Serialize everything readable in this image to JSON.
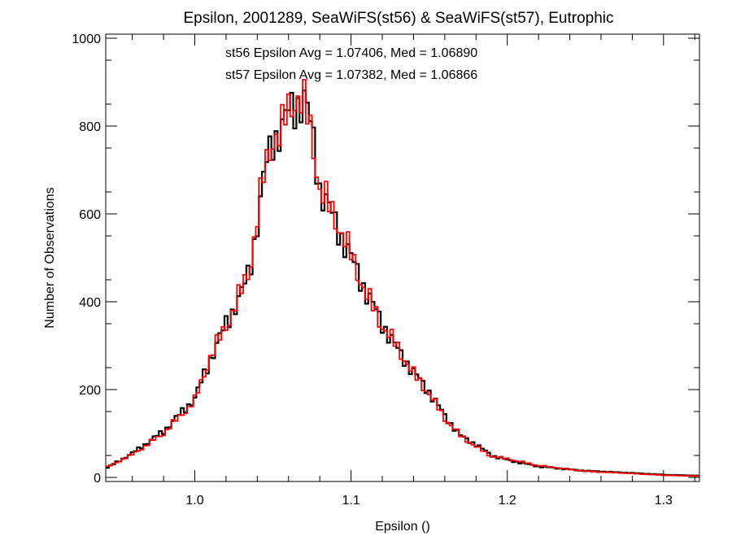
{
  "chart_data": {
    "type": "line",
    "title": "Epsilon, 2001289, SeaWiFS(st56) & SeaWiFS(st57), Eutrophic",
    "xlabel": "Epsilon ()",
    "ylabel": "Number of Observations",
    "xlim": [
      0.943,
      1.323
    ],
    "ylim": [
      0,
      1000
    ],
    "xticks": [
      1.0,
      1.1,
      1.2,
      1.3
    ],
    "xtick_labels": [
      "1.0",
      "1.1",
      "1.2",
      "1.3"
    ],
    "yticks": [
      0,
      200,
      400,
      600,
      800,
      1000
    ],
    "ytick_labels": [
      "0",
      "200",
      "400",
      "600",
      "800",
      "1000"
    ],
    "grid": false,
    "annotations": [
      {
        "text": "st56 Epsilon Avg = 1.07406, Med = 1.06890",
        "color": "#000000"
      },
      {
        "text": "st57 Epsilon Avg = 1.07382, Med = 1.06866",
        "color": "#ff0000"
      }
    ],
    "series": [
      {
        "color": "#000000",
        "x": [
          0.943,
          0.96,
          0.98,
          1.0,
          1.01,
          1.02,
          1.03,
          1.035,
          1.04,
          1.045,
          1.05,
          1.055,
          1.06,
          1.065,
          1.07,
          1.075,
          1.08,
          1.09,
          1.1,
          1.11,
          1.12,
          1.13,
          1.14,
          1.15,
          1.16,
          1.17,
          1.18,
          1.19,
          1.2,
          1.22,
          1.25,
          1.28,
          1.3,
          1.323
        ],
        "y": [
          20,
          55,
          105,
          180,
          270,
          350,
          420,
          470,
          580,
          700,
          770,
          790,
          830,
          850,
          860,
          790,
          660,
          580,
          500,
          420,
          350,
          290,
          240,
          195,
          140,
          95,
          75,
          50,
          40,
          25,
          15,
          10,
          6,
          4
        ]
      },
      {
        "color": "#ff0000",
        "x": [
          0.943,
          0.96,
          0.98,
          1.0,
          1.01,
          1.02,
          1.03,
          1.035,
          1.04,
          1.045,
          1.05,
          1.055,
          1.06,
          1.065,
          1.07,
          1.075,
          1.08,
          1.09,
          1.1,
          1.11,
          1.12,
          1.13,
          1.14,
          1.15,
          1.16,
          1.17,
          1.18,
          1.19,
          1.2,
          1.22,
          1.25,
          1.28,
          1.3,
          1.323
        ],
        "y": [
          22,
          52,
          100,
          175,
          275,
          345,
          425,
          475,
          590,
          705,
          775,
          780,
          840,
          870,
          845,
          780,
          655,
          590,
          505,
          415,
          345,
          295,
          235,
          190,
          135,
          95,
          70,
          48,
          42,
          27,
          14,
          9,
          5,
          3
        ]
      }
    ]
  }
}
